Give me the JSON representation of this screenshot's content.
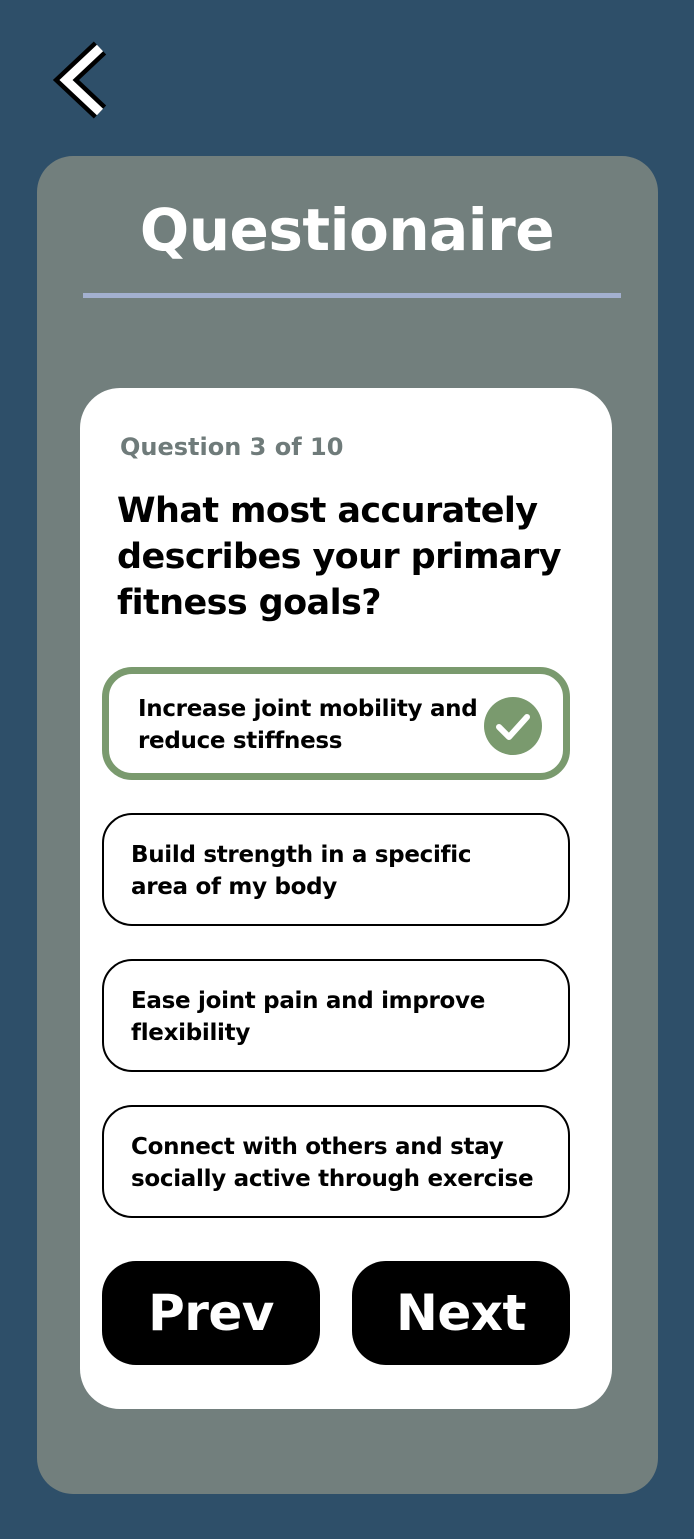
{
  "header": {
    "back_icon": "chevron-left-icon",
    "title": "Questionaire"
  },
  "question": {
    "progress": "Question 3 of 10",
    "text": "What most accurately describes your primary fitness goals?"
  },
  "options": [
    {
      "label": "Increase joint mobility and reduce stiffness",
      "selected": true
    },
    {
      "label": "Build strength in a specific area of my body",
      "selected": false
    },
    {
      "label": "Ease joint pain and improve flexibility",
      "selected": false
    },
    {
      "label": "Connect with others and stay socially active through exercise",
      "selected": false
    }
  ],
  "navigation": {
    "prev_label": "Prev",
    "next_label": "Next"
  },
  "colors": {
    "background": "#2e4f69",
    "outer_card": "#727f7d",
    "divider": "#a3b0cf",
    "selected_accent": "#7a9a6e",
    "progress_text": "#6f7b7a"
  }
}
